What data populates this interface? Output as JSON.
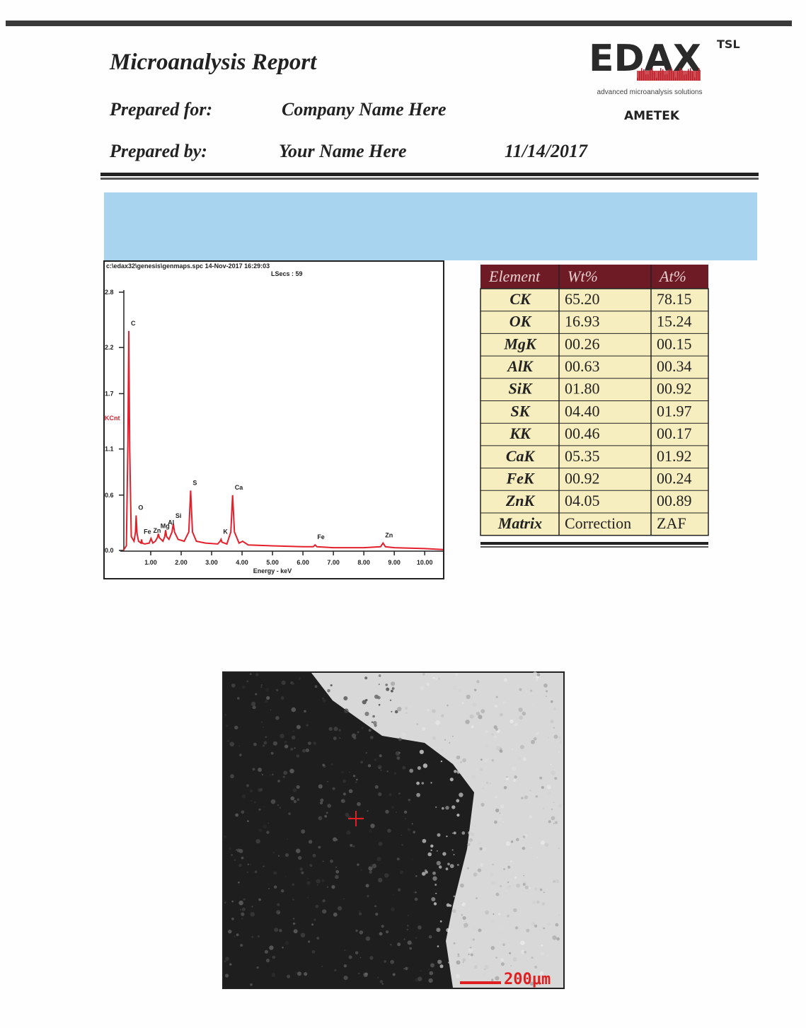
{
  "header": {
    "title": "Microanalysis Report",
    "prepared_for_label": "Prepared for:",
    "prepared_for": "Company Name Here",
    "prepared_by_label": "Prepared by:",
    "prepared_by": "Your Name Here",
    "date": "11/14/2017"
  },
  "logo": {
    "brand": "EDAX",
    "sub_brand": "TSL",
    "tagline": "advanced microanalysis solutions",
    "parent": "AMETEK"
  },
  "chart_data": {
    "type": "line",
    "file_info": "c:\\edax32\\genesis\\genmaps.spc 14-Nov-2017 16:29:03",
    "live_time": "LSecs : 59",
    "x_label": "Energy - keV",
    "y_label": "KCnt",
    "color": "#e3202c",
    "x": [
      0.1,
      0.2,
      0.25,
      0.28,
      0.31,
      0.36,
      0.45,
      0.5,
      0.52,
      0.55,
      0.6,
      0.68,
      0.7,
      0.72,
      0.8,
      0.95,
      1.01,
      1.07,
      1.15,
      1.22,
      1.25,
      1.28,
      1.4,
      1.46,
      1.49,
      1.52,
      1.6,
      1.7,
      1.74,
      1.78,
      1.9,
      2.1,
      2.25,
      2.31,
      2.37,
      2.5,
      2.8,
      3.2,
      3.28,
      3.31,
      3.34,
      3.5,
      3.63,
      3.69,
      3.75,
      3.9,
      4.02,
      4.2,
      5,
      6,
      6.34,
      6.4,
      6.46,
      7,
      8,
      8.55,
      8.63,
      8.71,
      9,
      10,
      10.6
    ],
    "values": [
      0,
      0.05,
      1.2,
      2.38,
      1.1,
      0.15,
      0.1,
      0.2,
      0.38,
      0.18,
      0.1,
      0.08,
      0.12,
      0.08,
      0.07,
      0.08,
      0.13,
      0.08,
      0.1,
      0.14,
      0.18,
      0.14,
      0.1,
      0.15,
      0.22,
      0.15,
      0.12,
      0.2,
      0.29,
      0.2,
      0.12,
      0.1,
      0.2,
      0.65,
      0.2,
      0.1,
      0.08,
      0.07,
      0.1,
      0.12,
      0.09,
      0.07,
      0.2,
      0.6,
      0.2,
      0.08,
      0.1,
      0.06,
      0.05,
      0.04,
      0.04,
      0.06,
      0.04,
      0.03,
      0.03,
      0.04,
      0.08,
      0.04,
      0.03,
      0.02,
      0.01
    ],
    "xlim": [
      0,
      10.6
    ],
    "ylim": [
      0,
      2.8
    ],
    "xticks": [
      {
        "value": 1,
        "label": "1.00"
      },
      {
        "value": 2,
        "label": "2.00"
      },
      {
        "value": 3,
        "label": "3.00"
      },
      {
        "value": 4,
        "label": "4.00"
      },
      {
        "value": 5,
        "label": "5.00"
      },
      {
        "value": 6,
        "label": "6.00"
      },
      {
        "value": 7,
        "label": "7.00"
      },
      {
        "value": 8,
        "label": "8.00"
      },
      {
        "value": 9,
        "label": "9.00"
      },
      {
        "value": 10,
        "label": "10.00"
      }
    ],
    "yticks": [
      {
        "value": 0,
        "label": "0.0"
      },
      0.6,
      1.1,
      1.7,
      2.2,
      2.8
    ],
    "annotations": [
      {
        "label": "C",
        "x": 0.28
      },
      {
        "label": "O",
        "x": 0.52
      },
      {
        "label": "Fe",
        "x": 0.7
      },
      {
        "label": "Zn",
        "x": 1.01
      },
      {
        "label": "Mg",
        "x": 1.25
      },
      {
        "label": "Al",
        "x": 1.49
      },
      {
        "label": "Si",
        "x": 1.74
      },
      {
        "label": "S",
        "x": 2.31
      },
      {
        "label": "K",
        "x": 3.31
      },
      {
        "label": "Ca",
        "x": 3.69
      },
      {
        "label": "Fe",
        "x": 6.4
      },
      {
        "label": "Zn",
        "x": 8.63
      }
    ]
  },
  "table": {
    "header": [
      "Element",
      "Wt%",
      "At%"
    ],
    "rows": [
      [
        "CK",
        "65.20",
        "78.15"
      ],
      [
        "OK",
        "16.93",
        "15.24"
      ],
      [
        "MgK",
        "00.26",
        "00.15"
      ],
      [
        "AlK",
        "00.63",
        "00.34"
      ],
      [
        "SiK",
        "01.80",
        "00.92"
      ],
      [
        "SK",
        "04.40",
        "01.97"
      ],
      [
        "KK",
        "00.46",
        "00.17"
      ],
      [
        "CaK",
        "05.35",
        "01.92"
      ],
      [
        "FeK",
        "00.92",
        "00.24"
      ],
      [
        "ZnK",
        "04.05",
        "00.89"
      ],
      [
        "Matrix",
        "Correction",
        "ZAF"
      ]
    ]
  },
  "image": {
    "scale_label": "200μm"
  }
}
